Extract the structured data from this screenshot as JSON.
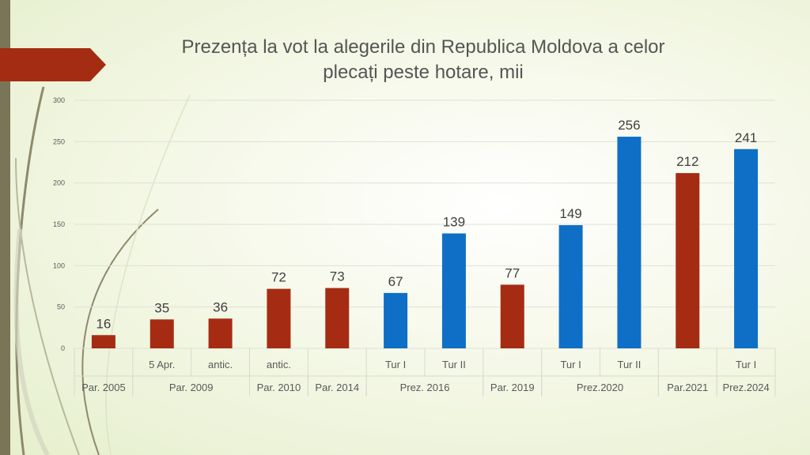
{
  "chart_data": {
    "type": "bar",
    "title_line1": "Prezența la vot la alegerile din Republica Moldova a celor",
    "title_line2": "plecați peste hotare, mii",
    "ylim": [
      0,
      300
    ],
    "yticks": [
      0,
      50,
      100,
      150,
      200,
      250,
      300
    ],
    "grid": true,
    "legend": "none",
    "colors": {
      "parliamentary": "#a52c13",
      "presidential": "#0f6fc6"
    },
    "bars": [
      {
        "value": 16,
        "sublabel": "",
        "kind": "parliamentary"
      },
      {
        "value": 35,
        "sublabel": "5 Apr.",
        "kind": "parliamentary"
      },
      {
        "value": 36,
        "sublabel": "antic.",
        "kind": "parliamentary"
      },
      {
        "value": 72,
        "sublabel": "antic.",
        "kind": "parliamentary"
      },
      {
        "value": 73,
        "sublabel": "",
        "kind": "parliamentary"
      },
      {
        "value": 67,
        "sublabel": "Tur I",
        "kind": "presidential"
      },
      {
        "value": 139,
        "sublabel": "Tur II",
        "kind": "presidential"
      },
      {
        "value": 77,
        "sublabel": "",
        "kind": "parliamentary"
      },
      {
        "value": 149,
        "sublabel": "Tur I",
        "kind": "presidential"
      },
      {
        "value": 256,
        "sublabel": "Tur II",
        "kind": "presidential"
      },
      {
        "value": 212,
        "sublabel": "",
        "kind": "parliamentary"
      },
      {
        "value": 241,
        "sublabel": "Tur I",
        "kind": "presidential"
      }
    ],
    "groups": [
      {
        "label": "Par. 2005",
        "start": 0,
        "count": 1
      },
      {
        "label": "Par. 2009",
        "start": 1,
        "count": 2
      },
      {
        "label": "Par. 2010",
        "start": 3,
        "count": 1
      },
      {
        "label": "Par. 2014",
        "start": 4,
        "count": 1
      },
      {
        "label": "Prez. 2016",
        "start": 5,
        "count": 2
      },
      {
        "label": "Par. 2019",
        "start": 7,
        "count": 1
      },
      {
        "label": "Prez.2020",
        "start": 8,
        "count": 2
      },
      {
        "label": "Par.2021",
        "start": 10,
        "count": 1
      },
      {
        "label": "Prez.2024",
        "start": 11,
        "count": 1
      }
    ]
  }
}
